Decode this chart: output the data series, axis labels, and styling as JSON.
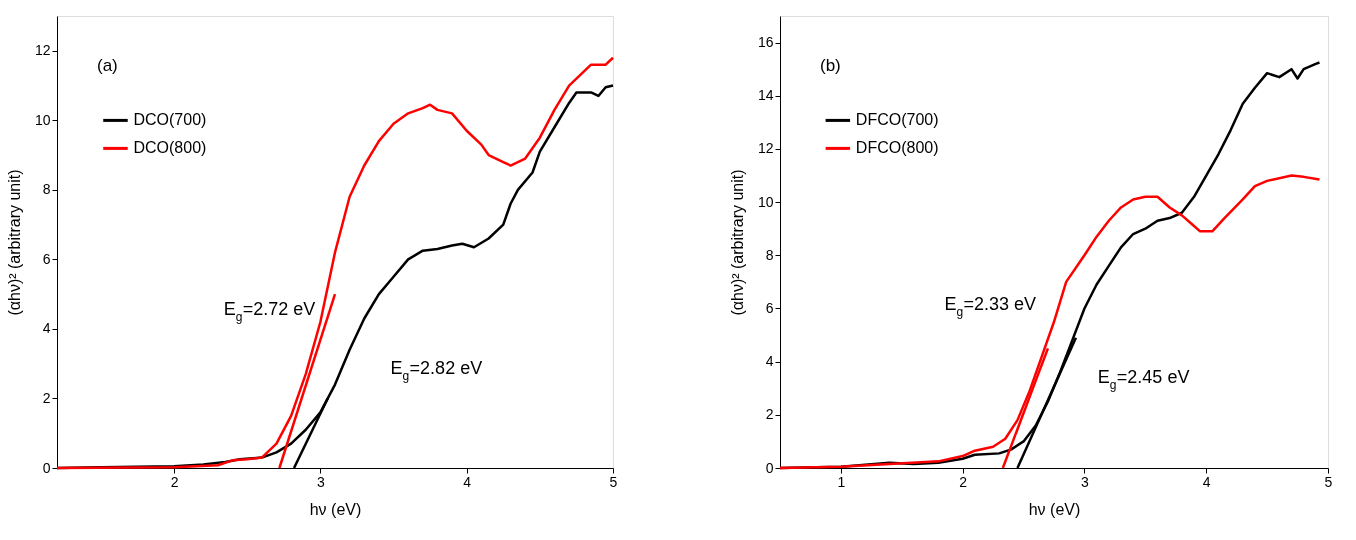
{
  "chart_data": [
    {
      "type": "line",
      "title": "(a)",
      "xlabel": "hν (eV)",
      "ylabel": "(αhν)² (arbitrary unit)",
      "xlim": [
        1.2,
        5
      ],
      "ylim": [
        0,
        13
      ],
      "xticks": [
        2,
        3,
        4,
        5
      ],
      "yticks": [
        0,
        2,
        4,
        6,
        8,
        10,
        12
      ],
      "grid": false,
      "legend": "top left",
      "marker": "none",
      "line_style": "solid",
      "annotations": [
        "E$_{g}$=2.72 eV",
        "E$_{g}$=2.82 eV"
      ],
      "series": [
        {
          "name": "DCO(700)",
          "color": "#000000",
          "x": [
            1.2,
            1.5,
            2.0,
            2.2,
            2.35,
            2.45,
            2.6,
            2.7,
            2.8,
            2.9,
            3.0,
            3.1,
            3.2,
            3.3,
            3.4,
            3.5,
            3.6,
            3.7,
            3.8,
            3.9,
            3.97,
            4.05,
            4.15,
            4.25,
            4.3,
            4.35,
            4.45,
            4.5,
            4.6,
            4.7,
            4.75,
            4.85,
            4.9,
            4.95,
            5.0
          ],
          "values": [
            0,
            0.02,
            0.05,
            0.1,
            0.17,
            0.25,
            0.3,
            0.45,
            0.7,
            1.1,
            1.6,
            2.4,
            3.4,
            4.3,
            5.0,
            5.5,
            6.0,
            6.25,
            6.3,
            6.4,
            6.45,
            6.35,
            6.6,
            7.0,
            7.6,
            8.0,
            8.5,
            9.1,
            9.8,
            10.5,
            10.8,
            10.8,
            10.7,
            10.95,
            11.0
          ]
        },
        {
          "name": "DCO(800)",
          "color": "#ff0000",
          "x": [
            1.2,
            2.0,
            2.3,
            2.4,
            2.5,
            2.6,
            2.7,
            2.8,
            2.9,
            3.0,
            3.1,
            3.2,
            3.3,
            3.4,
            3.5,
            3.6,
            3.7,
            3.75,
            3.8,
            3.9,
            4.0,
            4.1,
            4.15,
            4.25,
            4.3,
            4.4,
            4.5,
            4.6,
            4.7,
            4.8,
            4.85,
            4.95,
            5.0
          ],
          "values": [
            0,
            0.02,
            0.08,
            0.22,
            0.25,
            0.3,
            0.7,
            1.5,
            2.7,
            4.2,
            6.2,
            7.8,
            8.7,
            9.4,
            9.9,
            10.2,
            10.35,
            10.45,
            10.3,
            10.2,
            9.7,
            9.3,
            9.0,
            8.8,
            8.7,
            8.9,
            9.5,
            10.3,
            11.0,
            11.4,
            11.6,
            11.6,
            11.8
          ]
        },
        {
          "type": "line",
          "color": "#ff0000",
          "x": [
            2.72,
            3.1
          ],
          "values": [
            0,
            5
          ]
        },
        {
          "type": "line",
          "color": "#000000",
          "x": [
            2.82,
            3.05
          ],
          "values": [
            0,
            2
          ]
        }
      ]
    },
    {
      "type": "line",
      "title": "(b)",
      "xlabel": "hν (eV)",
      "ylabel": "(αhν)² (arbitrary unit)",
      "xlim": [
        0.5,
        5
      ],
      "ylim": [
        0,
        17
      ],
      "xticks": [
        1,
        2,
        3,
        4,
        5
      ],
      "yticks": [
        0,
        2,
        4,
        6,
        8,
        10,
        12,
        14,
        16
      ],
      "grid": false,
      "legend": "top left",
      "marker": "none",
      "line_style": "solid",
      "annotations": [
        "E$_{g}$=2.33 eV",
        "E$_{g}$=2.45 eV"
      ],
      "series": [
        {
          "name": "DFCO(700)",
          "color": "#000000",
          "x": [
            0.5,
            1.0,
            1.4,
            1.6,
            1.8,
            2.0,
            2.1,
            2.3,
            2.4,
            2.5,
            2.6,
            2.7,
            2.8,
            2.9,
            3.0,
            3.1,
            3.2,
            3.3,
            3.4,
            3.5,
            3.6,
            3.7,
            3.8,
            3.9,
            4.0,
            4.1,
            4.2,
            4.3,
            4.4,
            4.5,
            4.6,
            4.7,
            4.75,
            4.8,
            4.9,
            4.93
          ],
          "values": [
            0,
            0.05,
            0.2,
            0.15,
            0.2,
            0.35,
            0.5,
            0.55,
            0.7,
            1.0,
            1.6,
            2.5,
            3.6,
            4.8,
            6.0,
            6.9,
            7.6,
            8.3,
            8.8,
            9.0,
            9.3,
            9.4,
            9.6,
            10.2,
            11.0,
            11.8,
            12.7,
            13.7,
            14.3,
            14.85,
            14.7,
            15.0,
            14.65,
            15.0,
            15.2,
            15.25
          ]
        },
        {
          "name": "DFCO(800)",
          "color": "#ff0000",
          "x": [
            0.5,
            1.0,
            1.4,
            1.8,
            2.0,
            2.1,
            2.25,
            2.35,
            2.45,
            2.55,
            2.65,
            2.75,
            2.85,
            3.0,
            3.1,
            3.2,
            3.3,
            3.4,
            3.5,
            3.6,
            3.7,
            3.8,
            3.9,
            3.95,
            4.05,
            4.15,
            4.3,
            4.4,
            4.5,
            4.6,
            4.7,
            4.8,
            4.93
          ],
          "values": [
            0,
            0.05,
            0.15,
            0.25,
            0.45,
            0.65,
            0.8,
            1.1,
            1.8,
            2.9,
            4.2,
            5.5,
            7.0,
            8.0,
            8.7,
            9.3,
            9.8,
            10.1,
            10.2,
            10.2,
            9.8,
            9.5,
            9.1,
            8.9,
            8.9,
            9.4,
            10.1,
            10.6,
            10.8,
            10.9,
            11.0,
            10.95,
            10.85
          ]
        },
        {
          "type": "line",
          "color": "#ff0000",
          "x": [
            2.33,
            2.7
          ],
          "values": [
            0,
            4.5
          ]
        },
        {
          "type": "line",
          "color": "#000000",
          "x": [
            2.45,
            2.93
          ],
          "values": [
            0,
            4.9
          ]
        }
      ]
    }
  ]
}
